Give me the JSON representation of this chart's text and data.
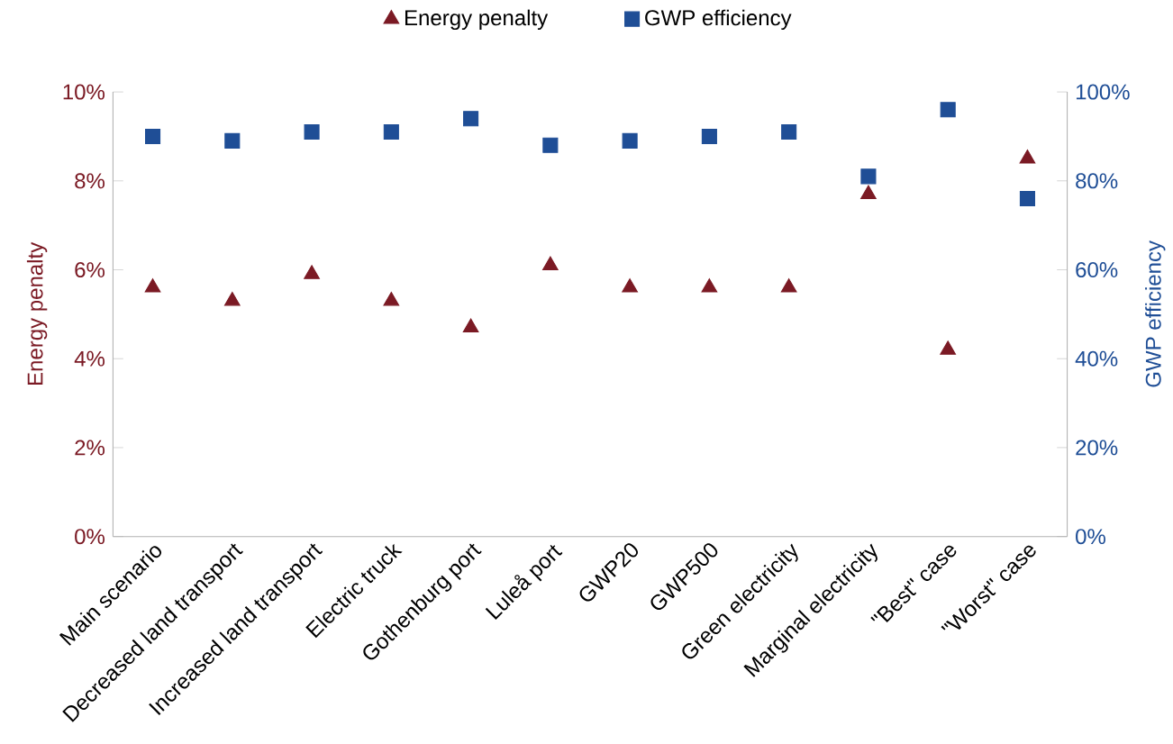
{
  "chart_data": {
    "type": "scatter",
    "ylabel": "Energy penalty",
    "y2label": "GWP efficiency",
    "categories": [
      "Main scenario",
      "Decreased land transport",
      "Increased land transport",
      "Electric truck",
      "Gothenburg port",
      "Luleå port",
      "GWP20",
      "GWP500",
      "Green electricity",
      "Marginal electricity",
      "\"Best\" case",
      "\"Worst\" case"
    ],
    "series": [
      {
        "name": "Energy penalty",
        "color": "#7b1a24",
        "marker": "triangle",
        "values": [
          5.6,
          5.3,
          5.9,
          5.3,
          4.7,
          6.1,
          5.6,
          5.6,
          5.6,
          7.7,
          4.2,
          8.5
        ]
      },
      {
        "name": "GWP efficiency",
        "color": "#1f4e96",
        "marker": "square",
        "axis": "y2",
        "values": [
          90,
          89,
          91,
          91,
          94,
          88,
          89,
          90,
          91,
          81,
          96,
          76
        ]
      }
    ],
    "ylim": [
      0,
      10
    ],
    "yticks": [
      {
        "value": 0,
        "label": "0%"
      },
      {
        "value": 2,
        "label": "2%"
      },
      {
        "value": 4,
        "label": "4%"
      },
      {
        "value": 6,
        "label": "6%"
      },
      {
        "value": 8,
        "label": "8%"
      },
      {
        "value": 10,
        "label": "10%"
      }
    ],
    "y2lim": [
      0,
      100
    ],
    "y2ticks": [
      {
        "value": 0,
        "label": "0%"
      },
      {
        "value": 20,
        "label": "20%"
      },
      {
        "value": 40,
        "label": "40%"
      },
      {
        "value": 60,
        "label": "60%"
      },
      {
        "value": 80,
        "label": "80%"
      },
      {
        "value": 100,
        "label": "100%"
      }
    ],
    "legend": "top",
    "grid": false
  }
}
